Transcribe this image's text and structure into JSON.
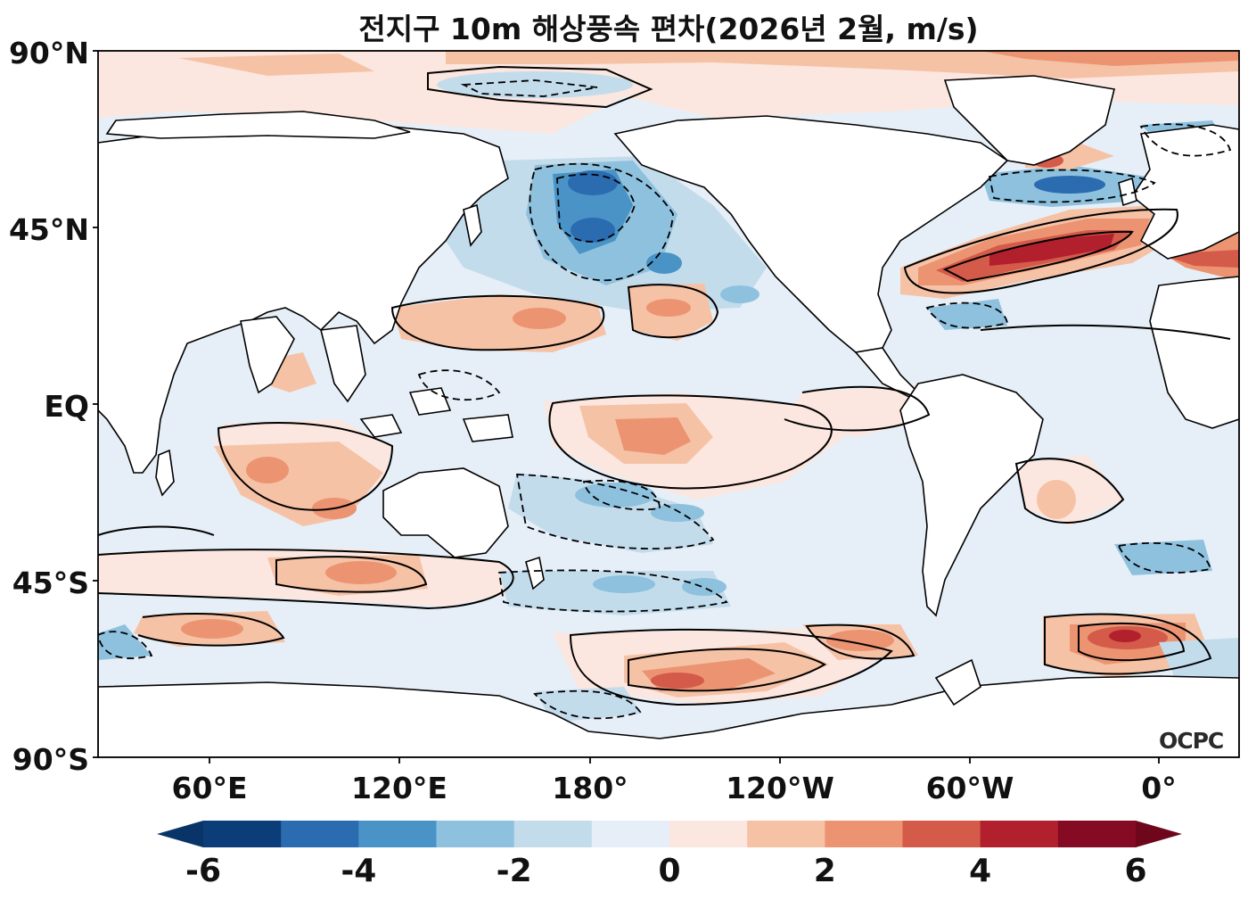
{
  "title": "전지구 10m 해상풍속 편차(2026년 2월, m/s)",
  "map": {
    "lat_labels": [
      "90°N",
      "45°N",
      "EQ",
      "45°S",
      "90°S"
    ],
    "lon_labels": [
      "60°E",
      "120°E",
      "180°",
      "120°W",
      "60°W",
      "0°"
    ],
    "logo": "OCPC"
  },
  "colorbar": {
    "labels": [
      "-6",
      "-4",
      "-2",
      "0",
      "2",
      "4",
      "6"
    ],
    "min": -6,
    "max": 6,
    "step": 1,
    "colors": [
      "#0b3d78",
      "#2b6cb0",
      "#4a93c6",
      "#8ec1de",
      "#c3dcec",
      "#e6eff7",
      "#fbe7df",
      "#f6c2a6",
      "#ec9472",
      "#d45a4a",
      "#b2202e",
      "#850a24"
    ],
    "under_color": "#083468",
    "over_color": "#6e061c"
  }
}
